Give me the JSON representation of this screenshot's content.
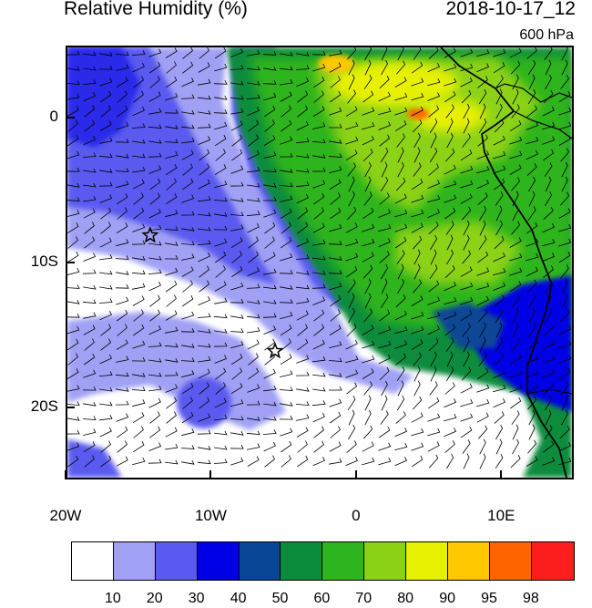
{
  "header": {
    "title": "Relative Humidity (%)",
    "datetime": "2018-10-17_12",
    "level": "600 hPa"
  },
  "map": {
    "lon_range": [
      -20,
      15
    ],
    "lat_range": [
      -25,
      5
    ],
    "lat_ticks": [
      {
        "lat": 0,
        "label": "0"
      },
      {
        "lat": -10,
        "label": "10S"
      },
      {
        "lat": -20,
        "label": "20S"
      }
    ],
    "lon_ticks": [
      {
        "lon": -20,
        "label": "20W"
      },
      {
        "lon": -10,
        "label": "10W"
      },
      {
        "lon": 0,
        "label": "0"
      },
      {
        "lon": 10,
        "label": "10E"
      }
    ],
    "markers": [
      {
        "type": "star",
        "lon": -14.3,
        "lat": -8.0
      },
      {
        "type": "star",
        "lon": -5.7,
        "lat": -16.0
      }
    ]
  },
  "colorbar": {
    "colors": [
      "#ffffff",
      "#a0a0f5",
      "#5a5af0",
      "#0000e6",
      "#0a4696",
      "#0a8c3c",
      "#2db41e",
      "#8cd214",
      "#e6f000",
      "#ffc800",
      "#ff6400",
      "#ff1e1e"
    ],
    "labels": [
      "10",
      "20",
      "30",
      "40",
      "50",
      "60",
      "70",
      "80",
      "90",
      "95",
      "98"
    ]
  }
}
